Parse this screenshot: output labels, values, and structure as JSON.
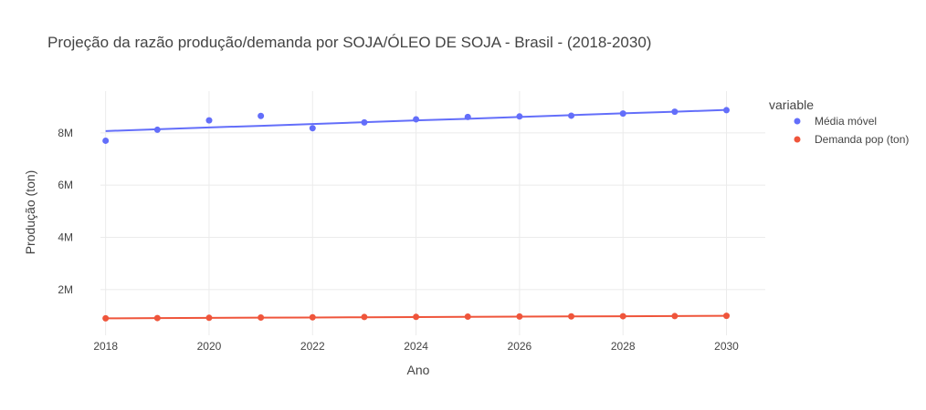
{
  "chart_data": {
    "type": "scatter",
    "title": "Projeção da razão produção/demanda por SOJA/ÓLEO DE SOJA - Brasil - (2018-2030)",
    "xlabel": "Ano",
    "ylabel": "Produção (ton)",
    "x": [
      2018,
      2019,
      2020,
      2021,
      2022,
      2023,
      2024,
      2025,
      2026,
      2027,
      2028,
      2029,
      2030
    ],
    "xlim": [
      2017.9,
      2030.75
    ],
    "ylim": [
      250000,
      9600000
    ],
    "x_ticks": [
      {
        "value": 2018,
        "label": "2018"
      },
      {
        "value": 2020,
        "label": "2020"
      },
      {
        "value": 2022,
        "label": "2022"
      },
      {
        "value": 2024,
        "label": "2024"
      },
      {
        "value": 2026,
        "label": "2026"
      },
      {
        "value": 2028,
        "label": "2028"
      },
      {
        "value": 2030,
        "label": "2030"
      }
    ],
    "y_ticks": [
      {
        "value": 2000000,
        "label": "2M"
      },
      {
        "value": 4000000,
        "label": "4M"
      },
      {
        "value": 6000000,
        "label": "6M"
      },
      {
        "value": 8000000,
        "label": "8M"
      }
    ],
    "grid": true,
    "legend": {
      "title": "variable",
      "position": "right"
    },
    "series": [
      {
        "name": "Média móvel",
        "color": "#636efa",
        "values": [
          7700000,
          8120000,
          8480000,
          8650000,
          8180000,
          8400000,
          8520000,
          8610000,
          8630000,
          8660000,
          8740000,
          8810000,
          8870000
        ],
        "trendline": [
          8070000,
          8140000,
          8210000,
          8270000,
          8340000,
          8410000,
          8480000,
          8540000,
          8610000,
          8680000,
          8750000,
          8810000,
          8880000
        ]
      },
      {
        "name": "Demanda pop (ton)",
        "color": "#ef553b",
        "values": [
          900000,
          910000,
          920000,
          930000,
          940000,
          950000,
          955000,
          965000,
          970000,
          975000,
          980000,
          985000,
          995000
        ],
        "trendline": [
          900000,
          908000,
          916000,
          924000,
          932000,
          940000,
          948000,
          956000,
          964000,
          972000,
          980000,
          988000,
          996000
        ]
      }
    ]
  }
}
